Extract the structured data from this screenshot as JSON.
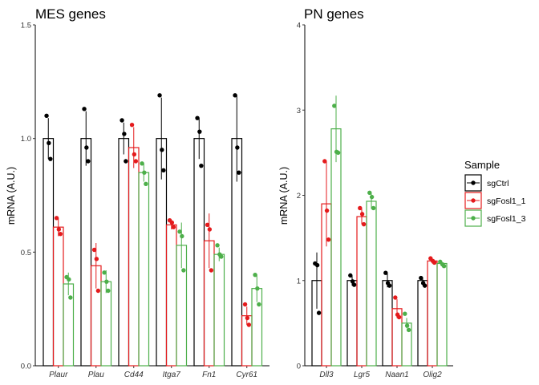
{
  "legend": {
    "title": "Sample",
    "items": [
      {
        "name": "sgCtrl",
        "color": "#000000"
      },
      {
        "name": "sgFosl1_1",
        "color": "#e41a1c"
      },
      {
        "name": "sgFosl1_3",
        "color": "#4daf4a"
      }
    ]
  },
  "chart_data": [
    {
      "type": "bar",
      "title": "MES genes",
      "ylabel": "mRNA (A.U.)",
      "xlabel": "",
      "ylim": [
        0,
        1.5
      ],
      "yticks": [
        "0.0",
        "0.5",
        "1.0",
        "1.5"
      ],
      "yticks_values": [
        0,
        0.5,
        1.0,
        1.5
      ],
      "categories": [
        "Plaur",
        "Plau",
        "Cd44",
        "Itga7",
        "Fn1",
        "Cyr61"
      ],
      "series": [
        {
          "name": "sgCtrl",
          "color": "#000000",
          "values": [
            1.0,
            1.0,
            1.0,
            1.0,
            1.0,
            1.0
          ],
          "errors": [
            0.09,
            0.12,
            0.07,
            0.18,
            0.09,
            0.19
          ],
          "points": [
            [
              1.1,
              0.98,
              0.91
            ],
            [
              1.13,
              0.96,
              0.9
            ],
            [
              1.08,
              1.02,
              0.9
            ],
            [
              1.19,
              0.95,
              0.86
            ],
            [
              1.09,
              1.03,
              0.88
            ],
            [
              1.19,
              0.96,
              0.85
            ]
          ]
        },
        {
          "name": "sgFosl1_1",
          "color": "#e41a1c",
          "values": [
            0.61,
            0.44,
            0.96,
            0.62,
            0.55,
            0.22
          ],
          "errors": [
            0.04,
            0.1,
            0.09,
            0.02,
            0.12,
            0.04
          ],
          "points": [
            [
              0.65,
              0.6,
              0.58
            ],
            [
              0.51,
              0.47,
              0.33
            ],
            [
              1.06,
              0.93,
              0.9
            ],
            [
              0.64,
              0.63,
              0.61
            ],
            [
              0.62,
              0.6,
              0.42
            ],
            [
              0.27,
              0.21,
              0.18
            ]
          ]
        },
        {
          "name": "sgFosl1_3",
          "color": "#4daf4a",
          "values": [
            0.36,
            0.37,
            0.85,
            0.53,
            0.49,
            0.34
          ],
          "errors": [
            0.05,
            0.05,
            0.04,
            0.1,
            0.03,
            0.06
          ],
          "points": [
            [
              0.39,
              0.38,
              0.3
            ],
            [
              0.41,
              0.37,
              0.33
            ],
            [
              0.89,
              0.85,
              0.8
            ],
            [
              0.59,
              0.57,
              0.42
            ],
            [
              0.53,
              0.49,
              0.48
            ],
            [
              0.4,
              0.34,
              0.27
            ]
          ]
        }
      ]
    },
    {
      "type": "bar",
      "title": "PN genes",
      "ylabel": "mRNA (A.U.)",
      "xlabel": "",
      "ylim": [
        0,
        4
      ],
      "yticks": [
        "0",
        "1",
        "2",
        "3",
        "4"
      ],
      "yticks_values": [
        0,
        1,
        2,
        3,
        4
      ],
      "categories": [
        "Dll3",
        "Lgr5",
        "Naan1",
        "Olig2"
      ],
      "series": [
        {
          "name": "sgCtrl",
          "color": "#000000",
          "values": [
            1.0,
            1.0,
            1.0,
            1.0
          ],
          "errors": [
            0.33,
            0.06,
            0.08,
            0.04
          ],
          "points": [
            [
              1.2,
              1.18,
              0.62
            ],
            [
              1.06,
              0.99,
              0.95
            ],
            [
              1.09,
              0.97,
              0.94
            ],
            [
              1.03,
              0.97,
              0.94
            ]
          ]
        },
        {
          "name": "sgFosl1_1",
          "color": "#e41a1c",
          "values": [
            1.9,
            1.75,
            0.67,
            1.23
          ],
          "errors": [
            0.5,
            0.09,
            0.11,
            0.03
          ],
          "points": [
            [
              2.4,
              1.82,
              1.48
            ],
            [
              1.85,
              1.78,
              1.66
            ],
            [
              0.8,
              0.6,
              0.57
            ],
            [
              1.26,
              1.23,
              1.21
            ]
          ]
        },
        {
          "name": "sgFosl1_3",
          "color": "#4daf4a",
          "values": [
            2.78,
            1.93,
            0.5,
            1.2
          ],
          "errors": [
            0.39,
            0.09,
            0.06,
            0.02
          ],
          "points": [
            [
              3.05,
              2.51,
              2.5
            ],
            [
              2.03,
              1.98,
              1.85
            ],
            [
              0.61,
              0.47,
              0.42
            ],
            [
              1.22,
              1.19,
              1.17
            ]
          ]
        }
      ]
    }
  ]
}
